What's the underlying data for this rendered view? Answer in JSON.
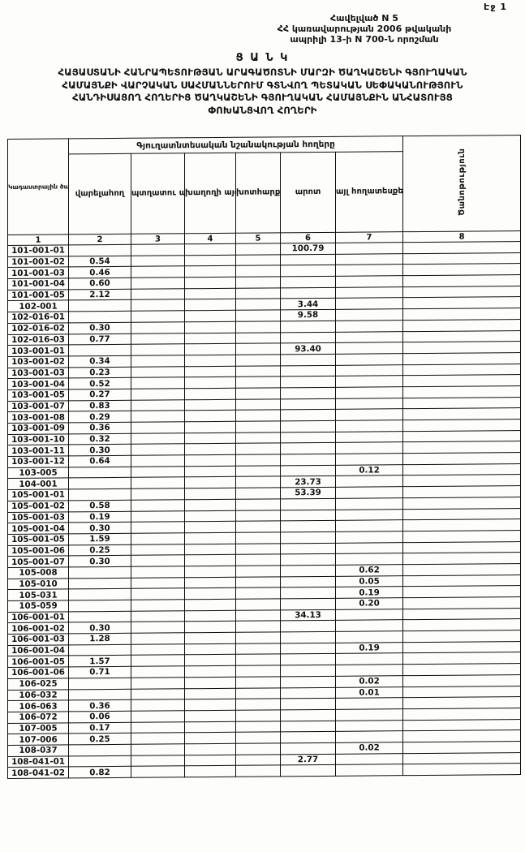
{
  "page": {
    "page_number": "Էջ 1",
    "appendix_line1": "Հավելված N 5",
    "appendix_line2": "ՀՀ կառավարության 2006 թվականի",
    "appendix_line3": "ապրիլի 13-ի N 700-Ն որոշման",
    "title": "Ց Ա Ն Կ",
    "subtitle_line1": "ՀԱՅԱՍՏԱՆԻ ՀԱՆՐԱՊԵՏՈՒԹՅԱՆ ԱՐԱԳԱԾՈՏՆԻ ՄԱՐԶԻ ԾԱՂԿԱՇԵՆԻ ԳՅՈՒՂԱԿԱՆ",
    "subtitle_line2": "ՀԱՄԱՅՆՔԻ ՎԱՐՉԱԿԱՆ ՍԱՀՄԱՆՆԵՐՈՒՄ ԳՏՆՎՈՂ ՊԵՏԱԿԱՆ ՍԵՓԱԿԱՆՈՒԹՅՈՒՆ",
    "subtitle_line3": "ՀԱՆԴԻՍԱՑՈՂ ՀՈՂԵՐԻՑ ԾԱՂԿԱՇԵՆԻ ԳՅՈՒՂԱԿԱՆ ՀԱՄԱՅՆՔԻՆ ԱՆՀԱՏՈՒՅՑ",
    "subtitle_line4": "ՓՈԽԱՆՑՎՈՂ ՀՈՂԵՐԻ"
  },
  "table": {
    "col_code_header": "Կադաստրային ծածկագիրը",
    "group_header": "Գյուղատնտեսական նշանակության հողերը",
    "sub_headers": [
      "վարելահող",
      "պտղատու այգի",
      "խաղողի այգի",
      "խոտհարք",
      "արոտ",
      "այլ հողատեսքեր"
    ],
    "note_header": "Ծանոթություն",
    "number_row": [
      "1",
      "2",
      "3",
      "4",
      "5",
      "6",
      "7",
      "8"
    ],
    "rows": [
      [
        "101-001-01",
        "",
        "",
        "",
        "",
        "100.79",
        "",
        ""
      ],
      [
        "101-001-02",
        "0.54",
        "",
        "",
        "",
        "",
        "",
        ""
      ],
      [
        "101-001-03",
        "0.46",
        "",
        "",
        "",
        "",
        "",
        ""
      ],
      [
        "101-001-04",
        "0.60",
        "",
        "",
        "",
        "",
        "",
        ""
      ],
      [
        "101-001-05",
        "2.12",
        "",
        "",
        "",
        "",
        "",
        ""
      ],
      [
        "102-001",
        "",
        "",
        "",
        "",
        "3.44",
        "",
        ""
      ],
      [
        "102-016-01",
        "",
        "",
        "",
        "",
        "9.58",
        "",
        ""
      ],
      [
        "102-016-02",
        "0.30",
        "",
        "",
        "",
        "",
        "",
        ""
      ],
      [
        "102-016-03",
        "0.77",
        "",
        "",
        "",
        "",
        "",
        ""
      ],
      [
        "103-001-01",
        "",
        "",
        "",
        "",
        "93.40",
        "",
        ""
      ],
      [
        "103-001-02",
        "0.34",
        "",
        "",
        "",
        "",
        "",
        ""
      ],
      [
        "103-001-03",
        "0.23",
        "",
        "",
        "",
        "",
        "",
        ""
      ],
      [
        "103-001-04",
        "0.52",
        "",
        "",
        "",
        "",
        "",
        ""
      ],
      [
        "103-001-05",
        "0.27",
        "",
        "",
        "",
        "",
        "",
        ""
      ],
      [
        "103-001-07",
        "0.83",
        "",
        "",
        "",
        "",
        "",
        ""
      ],
      [
        "103-001-08",
        "0.29",
        "",
        "",
        "",
        "",
        "",
        ""
      ],
      [
        "103-001-09",
        "0.36",
        "",
        "",
        "",
        "",
        "",
        ""
      ],
      [
        "103-001-10",
        "0.32",
        "",
        "",
        "",
        "",
        "",
        ""
      ],
      [
        "103-001-11",
        "0.30",
        "",
        "",
        "",
        "",
        "",
        ""
      ],
      [
        "103-001-12",
        "0.64",
        "",
        "",
        "",
        "",
        "",
        ""
      ],
      [
        "103-005",
        "",
        "",
        "",
        "",
        "",
        "0.12",
        ""
      ],
      [
        "104-001",
        "",
        "",
        "",
        "",
        "23.73",
        "",
        ""
      ],
      [
        "105-001-01",
        "",
        "",
        "",
        "",
        "53.39",
        "",
        ""
      ],
      [
        "105-001-02",
        "0.58",
        "",
        "",
        "",
        "",
        "",
        ""
      ],
      [
        "105-001-03",
        "0.19",
        "",
        "",
        "",
        "",
        "",
        ""
      ],
      [
        "105-001-04",
        "0.30",
        "",
        "",
        "",
        "",
        "",
        ""
      ],
      [
        "105-001-05",
        "1.59",
        "",
        "",
        "",
        "",
        "",
        ""
      ],
      [
        "105-001-06",
        "0.25",
        "",
        "",
        "",
        "",
        "",
        ""
      ],
      [
        "105-001-07",
        "0.30",
        "",
        "",
        "",
        "",
        "",
        ""
      ],
      [
        "105-008",
        "",
        "",
        "",
        "",
        "",
        "0.62",
        ""
      ],
      [
        "105-010",
        "",
        "",
        "",
        "",
        "",
        "0.05",
        ""
      ],
      [
        "105-031",
        "",
        "",
        "",
        "",
        "",
        "0.19",
        ""
      ],
      [
        "105-059",
        "",
        "",
        "",
        "",
        "",
        "0.20",
        ""
      ],
      [
        "106-001-01",
        "",
        "",
        "",
        "",
        "34.13",
        "",
        ""
      ],
      [
        "106-001-02",
        "0.30",
        "",
        "",
        "",
        "",
        "",
        ""
      ],
      [
        "106-001-03",
        "1.28",
        "",
        "",
        "",
        "",
        "",
        ""
      ],
      [
        "106-001-04",
        "",
        "",
        "",
        "",
        "",
        "0.19",
        ""
      ],
      [
        "106-001-05",
        "1.57",
        "",
        "",
        "",
        "",
        "",
        ""
      ],
      [
        "106-001-06",
        "0.71",
        "",
        "",
        "",
        "",
        "",
        ""
      ],
      [
        "106-025",
        "",
        "",
        "",
        "",
        "",
        "0.02",
        ""
      ],
      [
        "106-032",
        "",
        "",
        "",
        "",
        "",
        "0.01",
        ""
      ],
      [
        "106-063",
        "0.36",
        "",
        "",
        "",
        "",
        "",
        ""
      ],
      [
        "106-072",
        "0.06",
        "",
        "",
        "",
        "",
        "",
        ""
      ],
      [
        "107-005",
        "0.17",
        "",
        "",
        "",
        "",
        "",
        ""
      ],
      [
        "107-006",
        "0.25",
        "",
        "",
        "",
        "",
        "",
        ""
      ],
      [
        "108-037",
        "",
        "",
        "",
        "",
        "",
        "0.02",
        ""
      ],
      [
        "108-041-01",
        "",
        "",
        "",
        "",
        "2.77",
        "",
        ""
      ],
      [
        "108-041-02",
        "0.82",
        "",
        "",
        "",
        "",
        "",
        ""
      ]
    ]
  }
}
